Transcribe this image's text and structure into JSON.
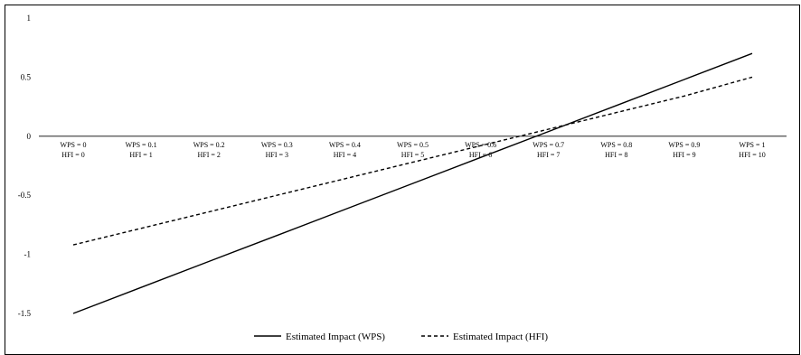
{
  "chart_data": {
    "type": "line",
    "title": "",
    "xlabel": "",
    "ylabel": "",
    "ylim": [
      -1.5,
      1
    ],
    "yticks": [
      1,
      0.5,
      0,
      -0.5,
      -1,
      -1.5
    ],
    "y_tick_labels": [
      "1",
      "0.5",
      "0",
      "-0.5",
      "-1",
      "-1.5"
    ],
    "categories": [
      [
        "WPS = 0",
        "HFI = 0"
      ],
      [
        "WPS = 0.1",
        "HFI = 1"
      ],
      [
        "WPS = 0.2",
        "HFI = 2"
      ],
      [
        "WPS = 0.3",
        "HFI = 3"
      ],
      [
        "WPS = 0.4",
        "HFI = 4"
      ],
      [
        "WPS = 0.5",
        "HFI = 5"
      ],
      [
        "WPS = 0.6",
        "HFI = 6"
      ],
      [
        "WPS = 0.7",
        "HFI = 7"
      ],
      [
        "WPS = 0.8",
        "HFI = 8"
      ],
      [
        "WPS = 0.9",
        "HFI = 9"
      ],
      [
        "WPS = 1",
        "HFI = 10"
      ]
    ],
    "series": [
      {
        "name": "Estimated Impact (WPS)",
        "line_style": "solid",
        "color": "#000000",
        "values": [
          -1.5,
          -1.28,
          -1.06,
          -0.84,
          -0.62,
          -0.4,
          -0.18,
          0.04,
          0.26,
          0.48,
          0.7
        ]
      },
      {
        "name": "Estimated Impact (HFI)",
        "line_style": "dashed",
        "color": "#000000",
        "values": [
          -0.92,
          -0.78,
          -0.64,
          -0.5,
          -0.36,
          -0.22,
          -0.08,
          0.06,
          0.2,
          0.34,
          0.5
        ]
      }
    ],
    "grid": false,
    "legend_position": "bottom-center"
  }
}
